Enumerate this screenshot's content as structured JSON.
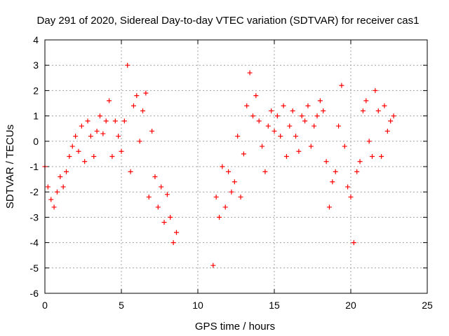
{
  "chart_data": {
    "type": "scatter",
    "title": "Day 291 of 2020, Sidereal Day-to-day VTEC variation (SDTVAR) for receiver cas1",
    "xlabel": "GPS time / hours",
    "ylabel": "SDTVAR / TECUs",
    "xlim": [
      0,
      25
    ],
    "ylim": [
      -6,
      4
    ],
    "xticks": [
      0,
      5,
      10,
      15,
      20,
      25
    ],
    "yticks": [
      -6,
      -5,
      -4,
      -3,
      -2,
      -1,
      0,
      1,
      2,
      3,
      4
    ],
    "grid": true,
    "marker": "+",
    "series_color": "#ff0000",
    "series": [
      {
        "name": "SDTVAR",
        "x": [
          0.0,
          0.2,
          0.4,
          0.6,
          0.8,
          1.0,
          1.2,
          1.4,
          1.6,
          1.8,
          2.0,
          2.2,
          2.4,
          2.6,
          2.8,
          3.0,
          3.2,
          3.4,
          3.6,
          3.8,
          4.0,
          4.2,
          4.4,
          4.6,
          4.8,
          5.0,
          5.2,
          5.4,
          5.6,
          5.8,
          6.0,
          6.2,
          6.4,
          6.6,
          6.8,
          7.0,
          7.2,
          7.4,
          7.6,
          7.8,
          8.0,
          8.2,
          8.4,
          8.6,
          11.0,
          11.2,
          11.4,
          11.6,
          11.8,
          12.0,
          12.2,
          12.4,
          12.6,
          12.8,
          13.0,
          13.2,
          13.4,
          13.6,
          13.8,
          14.0,
          14.2,
          14.4,
          14.6,
          14.8,
          15.0,
          15.2,
          15.4,
          15.6,
          15.8,
          16.0,
          16.2,
          16.4,
          16.6,
          16.8,
          17.0,
          17.2,
          17.4,
          17.6,
          17.8,
          18.0,
          18.2,
          18.4,
          18.6,
          18.8,
          19.0,
          19.2,
          19.4,
          19.6,
          19.8,
          20.0,
          20.2,
          20.4,
          20.6,
          20.8,
          21.0,
          21.2,
          21.4,
          21.6,
          21.8,
          22.0,
          22.2,
          22.4,
          22.6,
          22.8
        ],
        "y": [
          -1.0,
          -1.8,
          -2.3,
          -2.6,
          -2.0,
          -1.4,
          -1.8,
          -1.2,
          -0.6,
          -0.2,
          0.2,
          -0.4,
          0.6,
          -0.8,
          0.8,
          0.2,
          -0.6,
          0.4,
          1.0,
          0.3,
          0.8,
          1.6,
          -0.6,
          0.8,
          0.2,
          -0.4,
          0.8,
          3.0,
          -1.2,
          1.4,
          1.8,
          0.0,
          1.2,
          1.9,
          -2.2,
          0.4,
          -1.4,
          -2.6,
          -1.8,
          -3.2,
          -2.1,
          -3.0,
          -4.0,
          -3.6,
          -4.9,
          -2.2,
          -3.0,
          -1.0,
          -2.6,
          -1.2,
          -2.0,
          -1.6,
          0.2,
          -2.2,
          -0.5,
          1.4,
          2.7,
          1.0,
          1.8,
          0.8,
          -0.2,
          -1.2,
          0.6,
          1.2,
          0.4,
          1.0,
          0.2,
          1.4,
          -0.6,
          0.6,
          1.2,
          0.2,
          -0.4,
          1.0,
          0.8,
          1.4,
          -0.2,
          0.6,
          1.0,
          1.6,
          1.2,
          -0.8,
          -2.6,
          -1.6,
          -1.2,
          0.6,
          2.2,
          -0.2,
          -1.8,
          -2.2,
          -4.0,
          -1.2,
          -0.8,
          1.2,
          1.6,
          0.0,
          -0.6,
          2.0,
          1.2,
          -0.6,
          1.4,
          0.4,
          0.8,
          1.0
        ]
      }
    ]
  }
}
